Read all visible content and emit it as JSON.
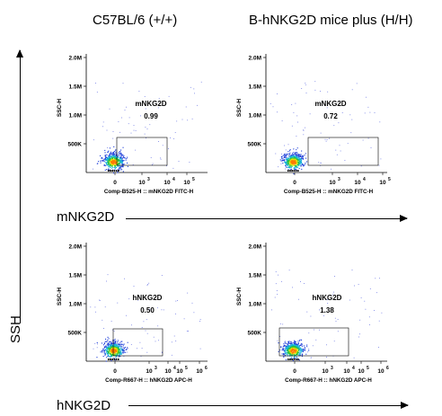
{
  "figure": {
    "col_titles": [
      "C57BL/6 (+/+)",
      "B-hNKG2D mice plus (H/H)"
    ],
    "row_labels": [
      "mNKG2D",
      "hNKG2D"
    ],
    "y_arrow_label": "SSH"
  },
  "chart_data": [
    {
      "type": "scatter",
      "title": "C57BL/6 (+/+)",
      "ylabel": "SSC-H",
      "xlabel": "Comp-B525-H :: mNKG2D FITC-H",
      "gate": {
        "name": "mNKG2D",
        "value": "0.99"
      },
      "yticks": [
        "500K",
        "1.0M",
        "1.5M",
        "2.0M"
      ],
      "xticks": [
        "0",
        "10",
        "10",
        "10"
      ],
      "xtick_exponents": [
        "",
        "3",
        "4",
        "5"
      ]
    },
    {
      "type": "scatter",
      "title": "B-hNKG2D mice plus (H/H)",
      "ylabel": "SSC-H",
      "xlabel": "Comp-B525-H :: mNKG2D FITC-H",
      "gate": {
        "name": "mNKG2D",
        "value": "0.72"
      },
      "yticks": [
        "500K",
        "1.0M",
        "1.5M",
        "2.0M"
      ],
      "xticks": [
        "0",
        "10",
        "10",
        "10"
      ],
      "xtick_exponents": [
        "",
        "3",
        "4",
        "5"
      ]
    },
    {
      "type": "scatter",
      "title": "C57BL/6 (+/+)",
      "ylabel": "SSC-H",
      "xlabel": "Comp-R667-H :: hNKG2D APC-H",
      "gate": {
        "name": "hNKG2D",
        "value": "0.50"
      },
      "yticks": [
        "500K",
        "1.0M",
        "1.5M",
        "2.0M"
      ],
      "xticks": [
        "0",
        "10",
        "10",
        "10",
        "10"
      ],
      "xtick_exponents": [
        "",
        "3",
        "4",
        "5",
        "6"
      ]
    },
    {
      "type": "scatter",
      "title": "B-hNKG2D mice plus (H/H)",
      "ylabel": "SSC-H",
      "xlabel": "Comp-R667-H :: hNKG2D APC-H",
      "gate": {
        "name": "hNKG2D",
        "value": "1.38"
      },
      "yticks": [
        "500K",
        "1.0M",
        "1.5M",
        "2.0M"
      ],
      "xticks": [
        "0",
        "10",
        "10",
        "10",
        "10"
      ],
      "xtick_exponents": [
        "",
        "3",
        "4",
        "5",
        "6"
      ]
    }
  ]
}
